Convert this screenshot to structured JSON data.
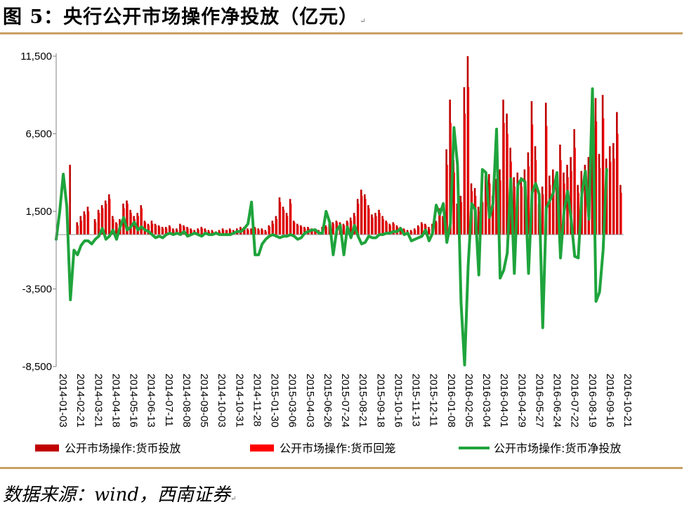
{
  "title": "图 5：央行公开市场操作净投放（亿元）",
  "title_mark": "↵",
  "source": "数据来源：wind，西南证券",
  "source_mark": "↵",
  "chart_data": {
    "type": "bar",
    "ylim": [
      -8500,
      11500
    ],
    "yticks": [
      "11,500",
      "6,500",
      "1,500",
      "-3,500",
      "-8,500"
    ],
    "ytick_values": [
      11500,
      6500,
      1500,
      -3500,
      -8500
    ],
    "grid": false,
    "legend_position": "bottom",
    "x_tick_labels": [
      "2014-01-03",
      "2014-02-21",
      "2014-03-21",
      "2014-04-18",
      "2014-05-16",
      "2014-06-13",
      "2014-07-11",
      "2014-08-08",
      "2014-09-05",
      "2014-10-03",
      "2014-10-31",
      "2014-11-28",
      "2015-01-30",
      "2015-03-06",
      "2015-04-03",
      "2015-06-26",
      "2015-07-24",
      "2015-08-21",
      "2015-09-18",
      "2015-10-16",
      "2015-11-13",
      "2015-12-11",
      "2016-01-08",
      "2016-02-05",
      "2016-03-04",
      "2016-04-01",
      "2016-04-29",
      "2016-05-27",
      "2016-06-24",
      "2016-07-22",
      "2016-08-19",
      "2016-09-16",
      "2016-10-21"
    ],
    "colors": {
      "issuance": "#c00000",
      "withdrawal": "#ff0000",
      "net": "#1fa43c"
    },
    "series": [
      {
        "name": "公开市场操作:货币投放",
        "key": "issuance",
        "values": [
          0,
          0,
          0,
          0,
          4500,
          0,
          800,
          1200,
          1500,
          1800,
          0,
          1000,
          1600,
          1900,
          2200,
          2600,
          1200,
          800,
          1000,
          2000,
          2200,
          1600,
          1200,
          1400,
          1900,
          900,
          700,
          900,
          700,
          600,
          500,
          500,
          600,
          400,
          400,
          700,
          600,
          500,
          400,
          300,
          400,
          500,
          400,
          300,
          300,
          200,
          300,
          400,
          300,
          400,
          300,
          400,
          500,
          500,
          400,
          400,
          500,
          400,
          400,
          300,
          600,
          900,
          1200,
          2400,
          1800,
          1400,
          2300,
          900,
          700,
          600,
          500,
          500,
          400,
          400,
          300,
          500,
          600,
          700,
          800,
          900,
          800,
          700,
          900,
          1100,
          1400,
          2300,
          2900,
          2600,
          1900,
          1300,
          1400,
          1600,
          1200,
          900,
          700,
          800,
          600,
          500,
          400,
          300,
          300,
          400,
          600,
          800,
          700,
          500,
          700,
          900,
          1700,
          1200,
          5500,
          8700,
          4800,
          2000,
          2500,
          9500,
          11500,
          3300,
          3000,
          1800,
          2500,
          3800,
          3900,
          2500,
          3600,
          4200,
          8700,
          7800,
          5600,
          3700,
          4000,
          3700,
          4200,
          5300,
          8600,
          5700,
          2000,
          3100,
          8500,
          3800,
          4200,
          3100,
          5800,
          4000,
          4500,
          5000,
          6800,
          3200,
          4100,
          4500,
          5000,
          5600,
          8800,
          5200,
          9000,
          4900,
          5700,
          5900,
          7900,
          3200
        ]
      },
      {
        "name": "公开市场操作:货币回笼",
        "key": "withdrawal",
        "values": [
          0,
          0,
          0,
          0,
          0,
          0,
          600,
          900,
          1300,
          1500,
          0,
          800,
          1400,
          1700,
          2000,
          2300,
          1000,
          700,
          800,
          1700,
          2000,
          1400,
          1000,
          1200,
          1700,
          800,
          600,
          700,
          600,
          500,
          400,
          400,
          500,
          300,
          300,
          600,
          500,
          400,
          300,
          200,
          300,
          400,
          300,
          200,
          200,
          200,
          200,
          300,
          300,
          300,
          200,
          300,
          400,
          400,
          300,
          300,
          400,
          300,
          300,
          200,
          500,
          700,
          1000,
          2100,
          1600,
          1200,
          2000,
          800,
          600,
          500,
          400,
          400,
          300,
          300,
          200,
          400,
          500,
          600,
          700,
          800,
          700,
          600,
          800,
          900,
          1200,
          2000,
          2500,
          2300,
          1700,
          1100,
          1200,
          1400,
          1000,
          800,
          600,
          700,
          500,
          400,
          300,
          200,
          200,
          300,
          500,
          700,
          600,
          400,
          600,
          800,
          1400,
          1000,
          4500,
          7200,
          4000,
          1700,
          2100,
          7800,
          9500,
          2800,
          2500,
          1500,
          2100,
          3200,
          3300,
          2100,
          3000,
          3500,
          7200,
          6500,
          4700,
          3100,
          3400,
          3100,
          3500,
          4400,
          7100,
          4800,
          1700,
          2600,
          7000,
          3200,
          3500,
          2600,
          4800,
          3300,
          3700,
          4100,
          5600,
          2700,
          3400,
          3700,
          4100,
          4600,
          7300,
          4300,
          7500,
          4100,
          4700,
          4900,
          6500,
          2700
        ]
      },
      {
        "name": "公开市场操作:货币净投放",
        "key": "net",
        "values": [
          -300,
          1500,
          3900,
          1800,
          -4200,
          -1000,
          -1300,
          -700,
          -400,
          -400,
          -600,
          -300,
          -100,
          400,
          -300,
          -100,
          300,
          -300,
          500,
          1100,
          300,
          500,
          800,
          300,
          500,
          300,
          200,
          0,
          -200,
          -100,
          -200,
          0,
          100,
          0,
          100,
          0,
          200,
          -100,
          0,
          100,
          0,
          -100,
          100,
          0,
          0,
          100,
          0,
          0,
          0,
          0,
          100,
          200,
          200,
          400,
          700,
          2100,
          -1300,
          -1300,
          -600,
          -300,
          -100,
          0,
          -100,
          -200,
          -100,
          -100,
          0,
          -100,
          -300,
          -200,
          100,
          200,
          300,
          300,
          100,
          100,
          1500,
          800,
          -1300,
          300,
          600,
          -1300,
          500,
          -200,
          600,
          -100,
          -600,
          -500,
          -100,
          -200,
          -200,
          0,
          0,
          100,
          100,
          200,
          200,
          400,
          0,
          100,
          -400,
          -300,
          -200,
          -100,
          300,
          -400,
          100,
          1900,
          1300,
          2000,
          -500,
          700,
          6900,
          4500,
          -4400,
          -8400,
          -2000,
          2000,
          1600,
          -2600,
          4200,
          4000,
          1100,
          2000,
          6800,
          -2800,
          -2300,
          -1200,
          3600,
          -2500,
          3200,
          3600,
          3400,
          -2500,
          2700,
          3300,
          2600,
          -6000,
          1700,
          2200,
          2700,
          4000,
          -1500,
          1500,
          2800,
          1000,
          -1400,
          -1500,
          2600,
          4100,
          1000,
          9400,
          -4300,
          -3700,
          -1000,
          4200
        ]
      }
    ]
  }
}
